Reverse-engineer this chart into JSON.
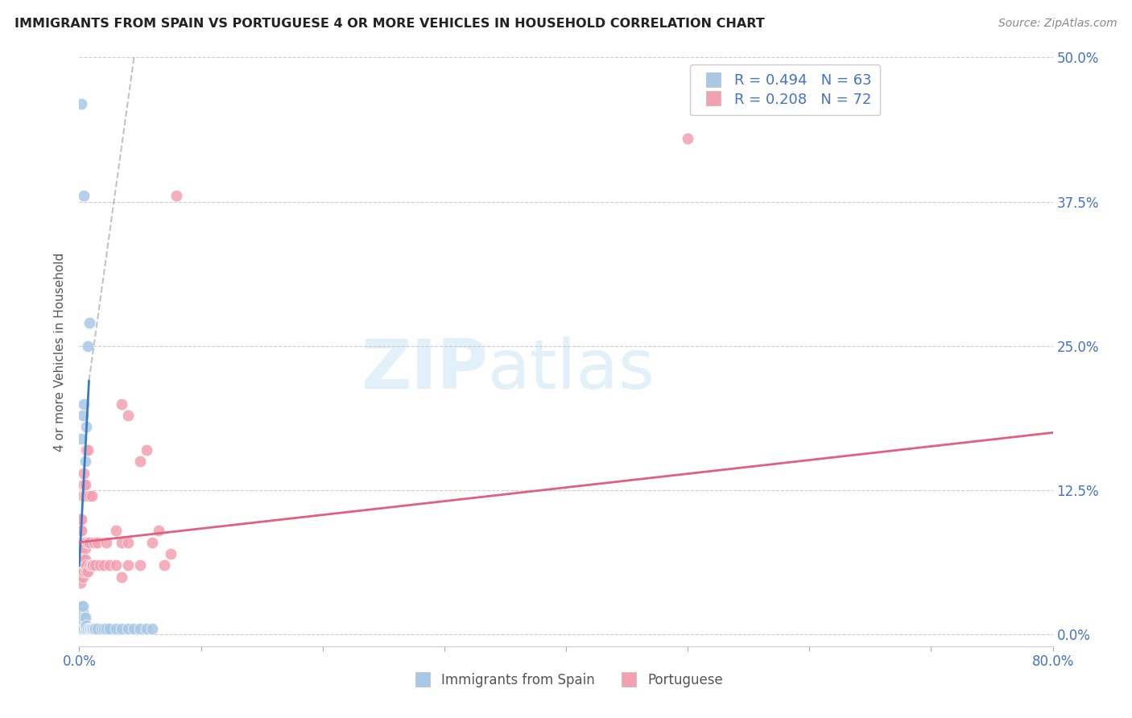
{
  "title": "IMMIGRANTS FROM SPAIN VS PORTUGUESE 4 OR MORE VEHICLES IN HOUSEHOLD CORRELATION CHART",
  "source": "Source: ZipAtlas.com",
  "ylabel": "4 or more Vehicles in Household",
  "xlim": [
    0.0,
    0.8
  ],
  "ylim": [
    -0.01,
    0.5
  ],
  "yticks": [
    0.0,
    0.125,
    0.25,
    0.375,
    0.5
  ],
  "xticks": [
    0.0,
    0.1,
    0.2,
    0.3,
    0.4,
    0.5,
    0.6,
    0.7,
    0.8
  ],
  "legend_labels": [
    "Immigrants from Spain",
    "Portuguese"
  ],
  "blue_color": "#a8c8e8",
  "pink_color": "#f4a0b0",
  "blue_line_color": "#3a7abf",
  "pink_line_color": "#e06080",
  "blue_scatter": [
    [
      0.0005,
      0.005
    ],
    [
      0.0006,
      0.008
    ],
    [
      0.0007,
      0.01
    ],
    [
      0.0008,
      0.012
    ],
    [
      0.0009,
      0.006
    ],
    [
      0.001,
      0.015
    ],
    [
      0.001,
      0.02
    ],
    [
      0.001,
      0.025
    ],
    [
      0.001,
      0.005
    ],
    [
      0.001,
      0.008
    ],
    [
      0.0012,
      0.01
    ],
    [
      0.0013,
      0.012
    ],
    [
      0.0015,
      0.015
    ],
    [
      0.0016,
      0.02
    ],
    [
      0.0017,
      0.018
    ],
    [
      0.002,
      0.025
    ],
    [
      0.002,
      0.005
    ],
    [
      0.002,
      0.008
    ],
    [
      0.002,
      0.01
    ],
    [
      0.002,
      0.17
    ],
    [
      0.0025,
      0.012
    ],
    [
      0.003,
      0.015
    ],
    [
      0.003,
      0.02
    ],
    [
      0.003,
      0.025
    ],
    [
      0.003,
      0.005
    ],
    [
      0.003,
      0.19
    ],
    [
      0.0035,
      0.01
    ],
    [
      0.004,
      0.012
    ],
    [
      0.004,
      0.015
    ],
    [
      0.004,
      0.005
    ],
    [
      0.004,
      0.2
    ],
    [
      0.005,
      0.005
    ],
    [
      0.005,
      0.008
    ],
    [
      0.005,
      0.15
    ],
    [
      0.005,
      0.015
    ],
    [
      0.006,
      0.005
    ],
    [
      0.006,
      0.008
    ],
    [
      0.006,
      0.18
    ],
    [
      0.007,
      0.005
    ],
    [
      0.007,
      0.25
    ],
    [
      0.008,
      0.005
    ],
    [
      0.008,
      0.27
    ],
    [
      0.009,
      0.005
    ],
    [
      0.009,
      0.005
    ],
    [
      0.01,
      0.005
    ],
    [
      0.01,
      0.005
    ],
    [
      0.011,
      0.005
    ],
    [
      0.012,
      0.005
    ],
    [
      0.013,
      0.005
    ],
    [
      0.015,
      0.005
    ],
    [
      0.018,
      0.005
    ],
    [
      0.02,
      0.005
    ],
    [
      0.022,
      0.005
    ],
    [
      0.025,
      0.005
    ],
    [
      0.03,
      0.005
    ],
    [
      0.035,
      0.005
    ],
    [
      0.04,
      0.005
    ],
    [
      0.045,
      0.005
    ],
    [
      0.05,
      0.005
    ],
    [
      0.055,
      0.005
    ],
    [
      0.06,
      0.005
    ],
    [
      0.002,
      0.46
    ],
    [
      0.004,
      0.38
    ]
  ],
  "pink_scatter": [
    [
      0.001,
      0.06
    ],
    [
      0.001,
      0.08
    ],
    [
      0.001,
      0.09
    ],
    [
      0.001,
      0.1
    ],
    [
      0.001,
      0.065
    ],
    [
      0.001,
      0.075
    ],
    [
      0.001,
      0.055
    ],
    [
      0.001,
      0.05
    ],
    [
      0.001,
      0.045
    ],
    [
      0.002,
      0.06
    ],
    [
      0.002,
      0.08
    ],
    [
      0.002,
      0.09
    ],
    [
      0.002,
      0.1
    ],
    [
      0.002,
      0.065
    ],
    [
      0.002,
      0.075
    ],
    [
      0.002,
      0.055
    ],
    [
      0.003,
      0.06
    ],
    [
      0.003,
      0.08
    ],
    [
      0.003,
      0.12
    ],
    [
      0.003,
      0.13
    ],
    [
      0.003,
      0.065
    ],
    [
      0.003,
      0.055
    ],
    [
      0.003,
      0.05
    ],
    [
      0.004,
      0.06
    ],
    [
      0.004,
      0.08
    ],
    [
      0.004,
      0.13
    ],
    [
      0.004,
      0.14
    ],
    [
      0.004,
      0.065
    ],
    [
      0.004,
      0.055
    ],
    [
      0.005,
      0.06
    ],
    [
      0.005,
      0.08
    ],
    [
      0.005,
      0.12
    ],
    [
      0.005,
      0.065
    ],
    [
      0.005,
      0.075
    ],
    [
      0.005,
      0.13
    ],
    [
      0.006,
      0.06
    ],
    [
      0.006,
      0.16
    ],
    [
      0.006,
      0.055
    ],
    [
      0.007,
      0.16
    ],
    [
      0.007,
      0.08
    ],
    [
      0.007,
      0.055
    ],
    [
      0.008,
      0.12
    ],
    [
      0.008,
      0.08
    ],
    [
      0.009,
      0.06
    ],
    [
      0.01,
      0.12
    ],
    [
      0.01,
      0.06
    ],
    [
      0.011,
      0.06
    ],
    [
      0.012,
      0.08
    ],
    [
      0.013,
      0.06
    ],
    [
      0.015,
      0.08
    ],
    [
      0.017,
      0.06
    ],
    [
      0.02,
      0.06
    ],
    [
      0.022,
      0.08
    ],
    [
      0.025,
      0.06
    ],
    [
      0.03,
      0.09
    ],
    [
      0.03,
      0.06
    ],
    [
      0.035,
      0.08
    ],
    [
      0.035,
      0.05
    ],
    [
      0.035,
      0.2
    ],
    [
      0.04,
      0.06
    ],
    [
      0.04,
      0.08
    ],
    [
      0.04,
      0.19
    ],
    [
      0.05,
      0.06
    ],
    [
      0.05,
      0.15
    ],
    [
      0.055,
      0.16
    ],
    [
      0.06,
      0.08
    ],
    [
      0.065,
      0.09
    ],
    [
      0.07,
      0.06
    ],
    [
      0.075,
      0.07
    ],
    [
      0.08,
      0.38
    ],
    [
      0.5,
      0.43
    ]
  ],
  "blue_line": {
    "x0": 0.0,
    "y0": 0.06,
    "x1": 0.008,
    "y1": 0.22,
    "x_dash0": 0.008,
    "y_dash0": 0.22,
    "x_dash1": 0.045,
    "y_dash1": 0.5
  },
  "pink_line": {
    "x0": 0.0,
    "y0": 0.08,
    "x1": 0.8,
    "y1": 0.175
  }
}
